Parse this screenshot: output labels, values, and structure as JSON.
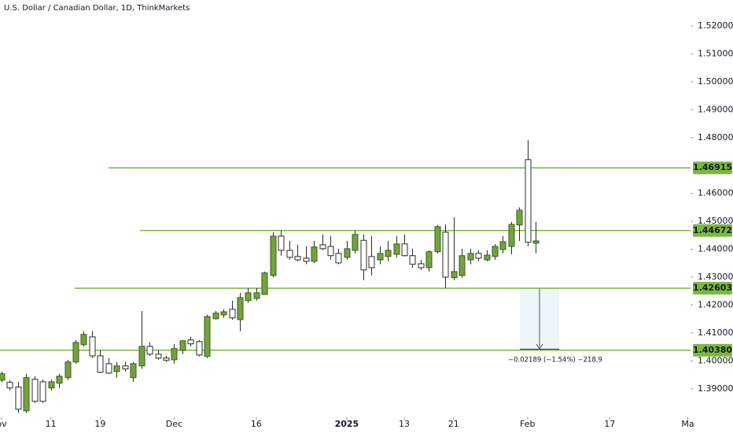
{
  "chart_data": {
    "type": "candlestick",
    "title": "U.S. Dollar / Canadian Dollar, 1D, ThinkMarkets",
    "x": [
      0,
      1,
      2,
      3,
      4,
      5,
      6,
      7,
      8,
      9,
      10,
      11,
      12,
      13,
      14,
      15,
      16,
      17,
      18,
      19,
      20,
      21,
      22,
      23,
      24,
      25,
      26,
      27,
      28,
      29,
      30,
      31,
      32,
      33,
      34,
      35,
      36,
      37,
      38,
      39,
      40,
      41,
      42,
      43,
      44,
      45,
      46,
      47,
      48,
      49,
      50,
      51,
      52,
      53,
      54,
      55,
      56,
      57,
      58,
      59,
      60,
      61,
      62,
      63,
      64,
      65
    ],
    "open": [
      1.3931,
      1.3923,
      1.3906,
      1.3821,
      1.3934,
      1.3925,
      1.3903,
      1.392,
      1.394,
      1.3996,
      1.4058,
      1.4086,
      1.4018,
      1.399,
      1.3962,
      1.3982,
      1.394,
      1.3982,
      1.4052,
      1.4024,
      1.401,
      1.4004,
      1.4038,
      1.4075,
      1.4069,
      1.4016,
      1.4151,
      1.4165,
      1.4185,
      1.4148,
      1.4216,
      1.4224,
      1.4238,
      1.4306,
      1.4447,
      1.4396,
      1.4374,
      1.4368,
      1.4357,
      1.4416,
      1.441,
      1.4385,
      1.4371,
      1.4396,
      1.4432,
      1.4374,
      1.4362,
      1.4374,
      1.4382,
      1.4419,
      1.4377,
      1.4348,
      1.4334,
      1.4391,
      1.4461,
      1.4298,
      1.4306,
      1.4362,
      1.4385,
      1.4362,
      1.4374,
      1.4399,
      1.441,
      1.4487,
      1.4721,
      1.4422
    ],
    "high": [
      1.3962,
      1.3931,
      1.3925,
      1.3954,
      1.3945,
      1.3934,
      1.3934,
      1.3954,
      1.4004,
      1.4075,
      1.4106,
      1.4106,
      1.4038,
      1.401,
      1.3996,
      1.3996,
      1.3996,
      1.4179,
      1.4066,
      1.4038,
      1.4018,
      1.4061,
      1.4075,
      1.4086,
      1.4075,
      1.4165,
      1.4179,
      1.4185,
      1.4216,
      1.4244,
      1.4261,
      1.4261,
      1.432,
      1.4461,
      1.4467,
      1.443,
      1.4416,
      1.441,
      1.443,
      1.4453,
      1.4447,
      1.4402,
      1.443,
      1.4467,
      1.4453,
      1.4447,
      1.441,
      1.443,
      1.4447,
      1.4453,
      1.4402,
      1.4362,
      1.4396,
      1.4487,
      1.4489,
      1.4515,
      1.4402,
      1.4402,
      1.4396,
      1.4396,
      1.4419,
      1.4447,
      1.4498,
      1.455,
      1.4791,
      1.4498
    ],
    "low": [
      1.3923,
      1.3894,
      1.3813,
      1.3813,
      1.3849,
      1.3849,
      1.3894,
      1.3903,
      1.3931,
      1.399,
      1.4052,
      1.401,
      1.3956,
      1.3954,
      1.394,
      1.3962,
      1.3925,
      1.3971,
      1.4018,
      1.4004,
      1.3996,
      1.399,
      1.4024,
      1.4052,
      1.4016,
      1.401,
      1.4148,
      1.4154,
      1.4148,
      1.4106,
      1.4208,
      1.4216,
      1.4238,
      1.43,
      1.4377,
      1.4362,
      1.4357,
      1.4346,
      1.4351,
      1.4396,
      1.4362,
      1.4346,
      1.4362,
      1.4385,
      1.4289,
      1.4306,
      1.4346,
      1.4357,
      1.4371,
      1.4374,
      1.4334,
      1.4326,
      1.432,
      1.4385,
      1.4261,
      1.4289,
      1.4298,
      1.4346,
      1.4357,
      1.4357,
      1.4362,
      1.4385,
      1.4382,
      1.443,
      1.441,
      1.4385
    ],
    "close": [
      1.3954,
      1.3903,
      1.3827,
      1.394,
      1.3855,
      1.3855,
      1.3925,
      1.3945,
      1.3996,
      1.4066,
      1.4095,
      1.4018,
      1.3959,
      1.3956,
      1.3982,
      1.3971,
      1.399,
      1.4052,
      1.4024,
      1.401,
      1.4002,
      1.4044,
      1.4072,
      1.4061,
      1.4021,
      1.4159,
      1.4171,
      1.4176,
      1.4154,
      1.4227,
      1.4244,
      1.4244,
      1.4315,
      1.4447,
      1.4396,
      1.4371,
      1.4362,
      1.4357,
      1.4408,
      1.4402,
      1.4377,
      1.4351,
      1.4402,
      1.4453,
      1.4326,
      1.4334,
      1.4385,
      1.4396,
      1.4419,
      1.4377,
      1.4346,
      1.4334,
      1.4391,
      1.4481,
      1.43,
      1.432,
      1.4377,
      1.4385,
      1.4368,
      1.4379,
      1.441,
      1.4427,
      1.4489,
      1.454,
      1.4425,
      1.443
    ],
    "up_color": "#73a33e",
    "down_color": "#ffffff",
    "xlim": [
      -0.19,
      83.83
    ],
    "xticks": [
      {
        "value": 0,
        "label": "ov"
      },
      {
        "value": 6,
        "label": "11"
      },
      {
        "value": 12,
        "label": "19"
      },
      {
        "value": 21,
        "label": "Dec"
      },
      {
        "value": 31,
        "label": "16"
      },
      {
        "value": 42,
        "label": "2025"
      },
      {
        "value": 49,
        "label": "13"
      },
      {
        "value": 55,
        "label": "21"
      },
      {
        "value": 64,
        "label": "Feb"
      },
      {
        "value": 74,
        "label": "17"
      },
      {
        "value": 83.5,
        "label": "Ma"
      }
    ],
    "ylim": [
      1.3798,
      1.5293
    ],
    "yticks": [
      {
        "value": 1.52,
        "label": "1.52000"
      },
      {
        "value": 1.51,
        "label": "1.51000"
      },
      {
        "value": 1.5,
        "label": "1.50000"
      },
      {
        "value": 1.49,
        "label": "1.49000"
      },
      {
        "value": 1.48,
        "label": "1.48000"
      },
      {
        "value": 1.46,
        "label": "1.46000"
      },
      {
        "value": 1.45,
        "label": "1.45000"
      },
      {
        "value": 1.44,
        "label": "1.44000"
      },
      {
        "value": 1.43,
        "label": "1.43000"
      },
      {
        "value": 1.42,
        "label": "1.42000"
      },
      {
        "value": 1.41,
        "label": "1.41000"
      },
      {
        "value": 1.4,
        "label": "1.40000"
      },
      {
        "value": 1.39,
        "label": "1.39000"
      }
    ],
    "levels": [
      {
        "value": 1.46915,
        "label": "1.46915"
      },
      {
        "value": 1.44672,
        "label": "1.44672"
      },
      {
        "value": 1.42603,
        "label": "1.42603"
      },
      {
        "value": 1.4038,
        "label": "1.40380"
      }
    ],
    "level_color": "#7cb83f",
    "annotations": [
      "−0.02189 (−1.54%) −218.9"
    ]
  }
}
